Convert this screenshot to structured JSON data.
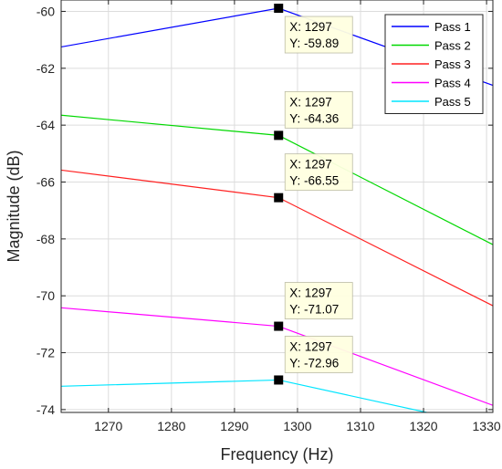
{
  "chart_data": {
    "type": "line",
    "title": "",
    "xlabel": "Frequency (Hz)",
    "ylabel": "Magnitude (dB)",
    "xlim": [
      1262.5,
      1331
    ],
    "ylim": [
      -74.1,
      -59.6
    ],
    "xticks": [
      1270,
      1280,
      1290,
      1300,
      1310,
      1320,
      1330
    ],
    "yticks": [
      -74,
      -72,
      -70,
      -68,
      -66,
      -64,
      -62,
      -60
    ],
    "grid": true,
    "legend_position": "top-right",
    "series": [
      {
        "name": "Pass 1",
        "color": "#0000ff",
        "x": [
          1262.5,
          1297,
          1331
        ],
        "y": [
          -61.25,
          -59.89,
          -62.6
        ]
      },
      {
        "name": "Pass 2",
        "color": "#00d800",
        "x": [
          1262.5,
          1297,
          1331
        ],
        "y": [
          -63.65,
          -64.36,
          -68.2
        ]
      },
      {
        "name": "Pass 3",
        "color": "#ff2020",
        "x": [
          1262.5,
          1297,
          1331
        ],
        "y": [
          -65.58,
          -66.55,
          -70.35
        ]
      },
      {
        "name": "Pass 4",
        "color": "#ff00ff",
        "x": [
          1262.5,
          1297,
          1331
        ],
        "y": [
          -70.42,
          -71.07,
          -73.85
        ]
      },
      {
        "name": "Pass 5",
        "color": "#00e5ff",
        "x": [
          1262.5,
          1297,
          1320.5
        ],
        "y": [
          -73.18,
          -72.96,
          -74.1
        ]
      }
    ],
    "datatips": [
      {
        "series": "Pass 1",
        "x": 1297,
        "y": -59.89,
        "x_text": "X: 1297",
        "y_text": "Y: -59.89",
        "placement": "below-right"
      },
      {
        "series": "Pass 2",
        "x": 1297,
        "y": -64.36,
        "x_text": "X: 1297",
        "y_text": "Y: -64.36",
        "placement": "above-right"
      },
      {
        "series": "Pass 3",
        "x": 1297,
        "y": -66.55,
        "x_text": "X: 1297",
        "y_text": "Y: -66.55",
        "placement": "above-right"
      },
      {
        "series": "Pass 4",
        "x": 1297,
        "y": -71.07,
        "x_text": "X: 1297",
        "y_text": "Y: -71.07",
        "placement": "above-right"
      },
      {
        "series": "Pass 5",
        "x": 1297,
        "y": -72.96,
        "x_text": "X: 1297",
        "y_text": "Y: -72.96",
        "placement": "above-right"
      }
    ]
  }
}
